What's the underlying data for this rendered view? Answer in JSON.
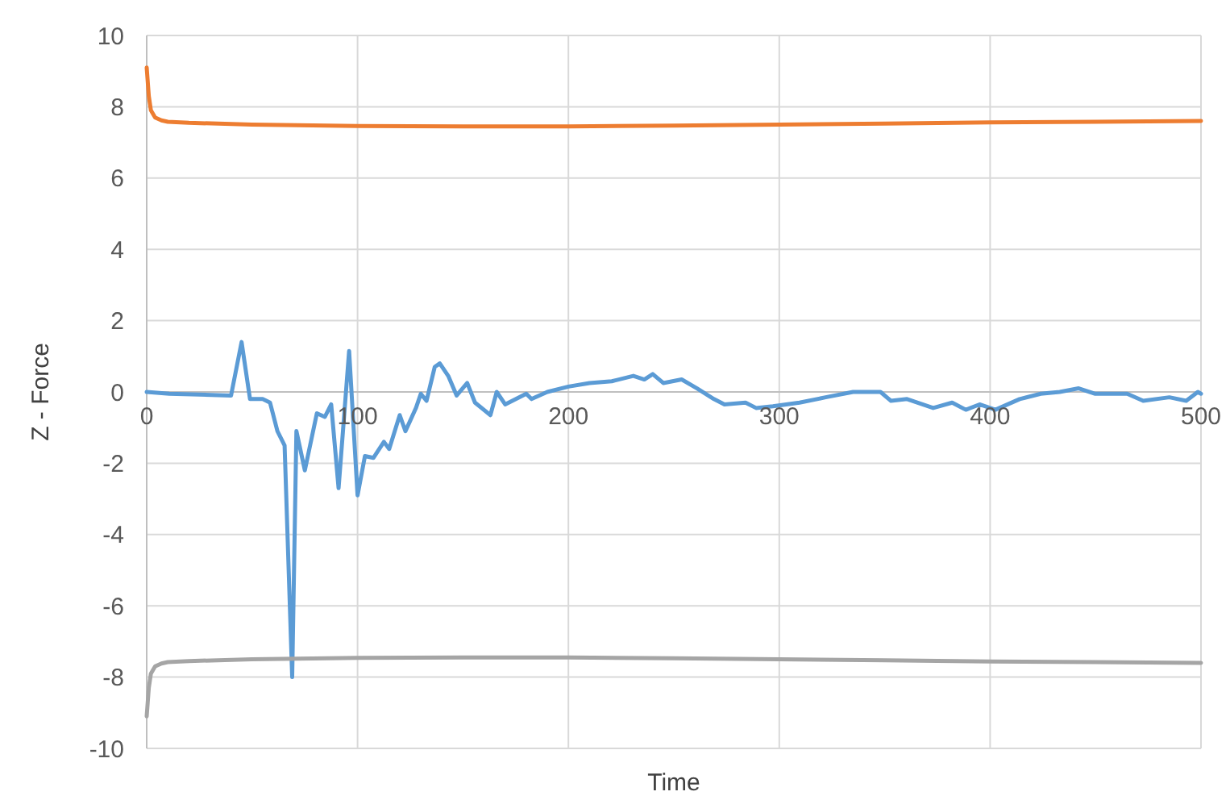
{
  "chart_data": {
    "type": "line",
    "xlabel": "Time",
    "ylabel": "Z - Force",
    "xlim": [
      0,
      500
    ],
    "ylim": [
      -10,
      10
    ],
    "xticks": [
      0,
      100,
      200,
      300,
      400,
      500
    ],
    "yticks": [
      -10,
      -8,
      -6,
      -4,
      -2,
      0,
      2,
      4,
      6,
      8,
      10
    ],
    "grid": true,
    "marker": "none",
    "line_style": "solid",
    "series": [
      {
        "color": "#ed7d31",
        "x": [
          0,
          1,
          2,
          4,
          7,
          10,
          20,
          50,
          100,
          150,
          200,
          250,
          300,
          350,
          400,
          450,
          500
        ],
        "values": [
          9.1,
          8.3,
          7.9,
          7.7,
          7.62,
          7.58,
          7.55,
          7.5,
          7.46,
          7.45,
          7.45,
          7.47,
          7.5,
          7.53,
          7.56,
          7.58,
          7.6
        ]
      },
      {
        "color": "#5b9bd5",
        "x": [
          0,
          10.7,
          40,
          45,
          49,
          55,
          58.5,
          62,
          65.4,
          69,
          71,
          75,
          80.7,
          84.5,
          87.5,
          91,
          96,
          100,
          103.5,
          107.5,
          112.5,
          115,
          120,
          122.7,
          127.7,
          130,
          132.7,
          136.6,
          139,
          143,
          147,
          152,
          155.7,
          163,
          166,
          170,
          180,
          182.5,
          190,
          200,
          210,
          220.6,
          230.8,
          236,
          240,
          245,
          253.7,
          261,
          269,
          274,
          284,
          289,
          297,
          309.6,
          322,
          335,
          348,
          353,
          360.6,
          373,
          382,
          388.5,
          395,
          402.5,
          414,
          424,
          433,
          442,
          449.6,
          465,
          472.6,
          485,
          493,
          498.5,
          500
        ],
        "values": [
          0,
          -0.05,
          -0.1,
          1.4,
          -0.2,
          -0.2,
          -0.3,
          -1.1,
          -1.5,
          -8.0,
          -1.1,
          -2.2,
          -0.6,
          -0.7,
          -0.35,
          -2.7,
          1.15,
          -2.9,
          -1.8,
          -1.85,
          -1.4,
          -1.6,
          -0.65,
          -1.1,
          -0.45,
          -0.05,
          -0.25,
          0.7,
          0.8,
          0.45,
          -0.1,
          0.25,
          -0.3,
          -0.65,
          0,
          -0.35,
          -0.05,
          -0.2,
          0,
          0.15,
          0.25,
          0.3,
          0.45,
          0.35,
          0.5,
          0.25,
          0.35,
          0.1,
          -0.2,
          -0.35,
          -0.3,
          -0.45,
          -0.4,
          -0.3,
          -0.15,
          0,
          0,
          -0.25,
          -0.2,
          -0.45,
          -0.3,
          -0.5,
          -0.35,
          -0.5,
          -0.2,
          -0.05,
          0,
          0.1,
          -0.05,
          -0.05,
          -0.25,
          -0.15,
          -0.25,
          0,
          -0.05
        ]
      },
      {
        "color": "#a5a5a5",
        "x": [
          0,
          1,
          2,
          4,
          7,
          10,
          20,
          50,
          100,
          150,
          200,
          250,
          300,
          350,
          400,
          450,
          500
        ],
        "values": [
          -9.1,
          -8.3,
          -7.9,
          -7.7,
          -7.62,
          -7.58,
          -7.55,
          -7.5,
          -7.46,
          -7.45,
          -7.45,
          -7.47,
          -7.5,
          -7.53,
          -7.56,
          -7.58,
          -7.6
        ]
      }
    ]
  }
}
